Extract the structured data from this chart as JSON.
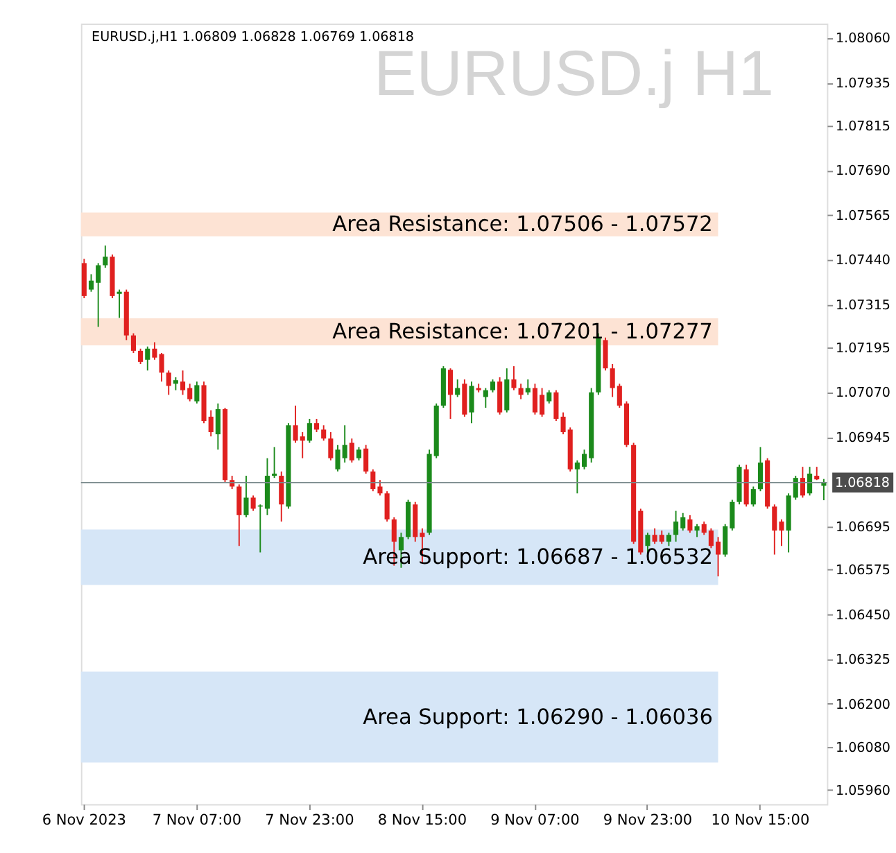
{
  "chart_data": {
    "type": "candlestick",
    "title": "EURUSD.j H1",
    "annotations": [
      "EURUSD.j,H1  1.06809 1.06828 1.06769 1.06818"
    ],
    "categories": [
      "6 Nov 2023",
      null,
      null,
      null,
      null,
      null,
      null,
      null,
      null,
      null,
      null,
      null,
      null,
      null,
      null,
      null,
      "7 Nov 07:00",
      null,
      null,
      null,
      null,
      null,
      null,
      null,
      null,
      null,
      null,
      null,
      null,
      null,
      null,
      null,
      "7 Nov 23:00",
      null,
      null,
      null,
      null,
      null,
      null,
      null,
      null,
      null,
      null,
      null,
      null,
      null,
      null,
      null,
      "8 Nov 15:00",
      null,
      null,
      null,
      null,
      null,
      null,
      null,
      null,
      null,
      null,
      null,
      null,
      null,
      null,
      null,
      "9 Nov 07:00",
      null,
      null,
      null,
      null,
      null,
      null,
      null,
      null,
      null,
      null,
      null,
      null,
      null,
      null,
      null,
      "9 Nov 23:00",
      null,
      null,
      null,
      null,
      null,
      null,
      null,
      null,
      null,
      null,
      null,
      null,
      null,
      null,
      null,
      "10 Nov 15:00",
      null,
      null,
      null,
      null,
      null,
      null,
      null,
      null,
      null
    ],
    "ohlc": [
      [
        1.07431,
        1.07443,
        1.07333,
        1.07339
      ],
      [
        1.07357,
        1.074,
        1.07351,
        1.07382
      ],
      [
        1.07376,
        1.07431,
        1.07253,
        1.07425
      ],
      [
        1.07425,
        1.0748,
        1.07418,
        1.07449
      ],
      [
        1.07449,
        1.07455,
        1.07333,
        1.07339
      ],
      [
        1.07345,
        1.07357,
        1.07278,
        1.07351
      ],
      [
        1.07351,
        1.07357,
        1.07216,
        1.07229
      ],
      [
        1.07229,
        1.07235,
        1.0718,
        1.07186
      ],
      [
        1.07186,
        1.07192,
        1.07149,
        1.07155
      ],
      [
        1.07161,
        1.07198,
        1.07131,
        1.07192
      ],
      [
        1.07192,
        1.0721,
        1.07161,
        1.07167
      ],
      [
        1.07177,
        1.0718,
        1.071,
        1.07125
      ],
      [
        1.07125,
        1.07131,
        1.07063,
        1.07088
      ],
      [
        1.07094,
        1.07112,
        1.07076,
        1.07104
      ],
      [
        1.071,
        1.07131,
        1.07063,
        1.07076
      ],
      [
        1.07082,
        1.07094,
        1.07045,
        1.07051
      ],
      [
        1.07045,
        1.071,
        1.07039,
        1.0709
      ],
      [
        1.0709,
        1.071,
        1.06984,
        1.0699
      ],
      [
        1.07002,
        1.0702,
        1.06947,
        1.06959
      ],
      [
        1.06953,
        1.07039,
        1.0691,
        1.07023
      ],
      [
        1.07023,
        1.07027,
        1.06819,
        1.06825
      ],
      [
        1.06825,
        1.06837,
        1.068,
        1.06807
      ],
      [
        1.06807,
        1.06813,
        1.06641,
        1.06727
      ],
      [
        1.06727,
        1.06837,
        1.06721,
        1.06776
      ],
      [
        1.06776,
        1.06782,
        1.06739,
        1.06745
      ],
      [
        1.06751,
        1.06757,
        1.06623,
        1.06754
      ],
      [
        1.06745,
        1.06886,
        1.06727,
        1.06837
      ],
      [
        1.06837,
        1.06917,
        1.06831,
        1.06843
      ],
      [
        1.06837,
        1.06849,
        1.06709,
        1.06757
      ],
      [
        1.06751,
        1.06984,
        1.06745,
        1.06978
      ],
      [
        1.06978,
        1.07033,
        1.06929,
        1.06935
      ],
      [
        1.06947,
        1.06959,
        1.06886,
        1.06935
      ],
      [
        1.06935,
        1.06996,
        1.06929,
        1.06984
      ],
      [
        1.06984,
        1.06996,
        1.06959,
        1.06966
      ],
      [
        1.06966,
        1.06978,
        1.06935,
        1.06941
      ],
      [
        1.06941,
        1.06959,
        1.0688,
        1.06886
      ],
      [
        1.06855,
        1.06923,
        1.06849,
        1.0691
      ],
      [
        1.06886,
        1.06978,
        1.06874,
        1.06923
      ],
      [
        1.06929,
        1.06941,
        1.06874,
        1.0688
      ],
      [
        1.06886,
        1.06917,
        1.0688,
        1.0691
      ],
      [
        1.06913,
        1.06923,
        1.06843,
        1.06849
      ],
      [
        1.06849,
        1.06855,
        1.06794,
        1.068
      ],
      [
        1.06807,
        1.06825,
        1.06782,
        1.06788
      ],
      [
        1.06788,
        1.06794,
        1.06709,
        1.06715
      ],
      [
        1.06715,
        1.06721,
        1.06586,
        1.06653
      ],
      [
        1.06629,
        1.06678,
        1.0658,
        1.06666
      ],
      [
        1.06666,
        1.0677,
        1.0666,
        1.06764
      ],
      [
        1.06757,
        1.06764,
        1.06653,
        1.06666
      ],
      [
        1.06678,
        1.0669,
        1.06592,
        1.06666
      ],
      [
        1.06678,
        1.0691,
        1.06672,
        1.06898
      ],
      [
        1.06892,
        1.07039,
        1.06886,
        1.07033
      ],
      [
        1.07033,
        1.07143,
        1.07027,
        1.07137
      ],
      [
        1.07133,
        1.07137,
        1.06996,
        1.07063
      ],
      [
        1.07063,
        1.07106,
        1.07057,
        1.07082
      ],
      [
        1.07094,
        1.07106,
        1.07002,
        1.07008
      ],
      [
        1.07014,
        1.071,
        1.06984,
        1.07088
      ],
      [
        1.07082,
        1.07094,
        1.0707,
        1.07076
      ],
      [
        1.07057,
        1.07082,
        1.07027,
        1.07076
      ],
      [
        1.07076,
        1.07106,
        1.0707,
        1.071
      ],
      [
        1.071,
        1.07112,
        1.07008,
        1.07014
      ],
      [
        1.0702,
        1.07137,
        1.07014,
        1.07106
      ],
      [
        1.07106,
        1.07143,
        1.07076,
        1.07082
      ],
      [
        1.07082,
        1.07094,
        1.07051,
        1.07063
      ],
      [
        1.0707,
        1.07106,
        1.07063,
        1.07082
      ],
      [
        1.07082,
        1.07094,
        1.07008,
        1.07014
      ],
      [
        1.07063,
        1.07082,
        1.07002,
        1.07008
      ],
      [
        1.07045,
        1.07076,
        1.07039,
        1.0707
      ],
      [
        1.0707,
        1.07076,
        1.0699,
        1.06996
      ],
      [
        1.07002,
        1.07014,
        1.06953,
        1.06959
      ],
      [
        1.06966,
        1.06972,
        1.06849,
        1.06855
      ],
      [
        1.06855,
        1.0688,
        1.06788,
        1.06874
      ],
      [
        1.06862,
        1.0691,
        1.06855,
        1.06898
      ],
      [
        1.06886,
        1.07082,
        1.06874,
        1.0707
      ],
      [
        1.0707,
        1.07235,
        1.07063,
        1.07223
      ],
      [
        1.07216,
        1.07223,
        1.07131,
        1.07137
      ],
      [
        1.07137,
        1.07149,
        1.07057,
        1.07082
      ],
      [
        1.07088,
        1.07094,
        1.07027,
        1.07033
      ],
      [
        1.07039,
        1.07045,
        1.06917,
        1.06923
      ],
      [
        1.06923,
        1.06929,
        1.06647,
        1.06653
      ],
      [
        1.06739,
        1.06745,
        1.06617,
        1.06623
      ],
      [
        1.06641,
        1.06678,
        1.06623,
        1.06672
      ],
      [
        1.06672,
        1.0669,
        1.06647,
        1.06653
      ],
      [
        1.06672,
        1.06684,
        1.06647,
        1.06653
      ],
      [
        1.06653,
        1.06678,
        1.06641,
        1.06672
      ],
      [
        1.06672,
        1.06739,
        1.06653,
        1.06709
      ],
      [
        1.0669,
        1.06733,
        1.06684,
        1.06721
      ],
      [
        1.06715,
        1.06727,
        1.06678,
        1.06684
      ],
      [
        1.06684,
        1.06702,
        1.06666,
        1.06696
      ],
      [
        1.06702,
        1.06709,
        1.06672,
        1.06678
      ],
      [
        1.06684,
        1.0669,
        1.06635,
        1.06641
      ],
      [
        1.06653,
        1.06666,
        1.06556,
        1.06617
      ],
      [
        1.06617,
        1.06702,
        1.06611,
        1.06696
      ],
      [
        1.0669,
        1.0677,
        1.06684,
        1.06764
      ],
      [
        1.06764,
        1.06868,
        1.06757,
        1.06862
      ],
      [
        1.06855,
        1.06868,
        1.06751,
        1.06757
      ],
      [
        1.06757,
        1.06807,
        1.06751,
        1.068
      ],
      [
        1.068,
        1.06917,
        1.06794,
        1.06874
      ],
      [
        1.0688,
        1.06886,
        1.06745,
        1.06751
      ],
      [
        1.06751,
        1.06757,
        1.06617,
        1.06684
      ],
      [
        1.06709,
        1.06715,
        1.06641,
        1.06684
      ],
      [
        1.06684,
        1.06788,
        1.06623,
        1.06782
      ],
      [
        1.06776,
        1.06837,
        1.0677,
        1.06831
      ],
      [
        1.06831,
        1.06862,
        1.06776,
        1.06782
      ],
      [
        1.06788,
        1.06862,
        1.06782,
        1.06843
      ],
      [
        1.06837,
        1.06862,
        1.06825,
        1.06827
      ],
      [
        1.06809,
        1.06828,
        1.06769,
        1.06818
      ]
    ],
    "colors": [
      "#e0201f",
      "#1b8a1b",
      "#1b8a1b",
      "#1b8a1b",
      "#e0201f",
      "#1b8a1b",
      "#e0201f",
      "#e0201f",
      "#e0201f",
      "#1b8a1b",
      "#e0201f",
      "#e0201f",
      "#e0201f",
      "#1b8a1b",
      "#e0201f",
      "#e0201f",
      "#1b8a1b",
      "#e0201f",
      "#e0201f",
      "#1b8a1b",
      "#e0201f",
      "#e0201f",
      "#e0201f",
      "#1b8a1b",
      "#e0201f",
      "#1b8a1b",
      "#1b8a1b",
      "#1b8a1b",
      "#e0201f",
      "#1b8a1b",
      "#e0201f",
      "#e0201f",
      "#1b8a1b",
      "#e0201f",
      "#e0201f",
      "#e0201f",
      "#1b8a1b",
      "#1b8a1b",
      "#e0201f",
      "#1b8a1b",
      "#e0201f",
      "#e0201f",
      "#e0201f",
      "#e0201f",
      "#e0201f",
      "#1b8a1b",
      "#1b8a1b",
      "#e0201f",
      "#e0201f",
      "#1b8a1b",
      "#1b8a1b",
      "#1b8a1b",
      "#e0201f",
      "#1b8a1b",
      "#e0201f",
      "#1b8a1b",
      "#e0201f",
      "#1b8a1b",
      "#1b8a1b",
      "#e0201f",
      "#1b8a1b",
      "#e0201f",
      "#e0201f",
      "#1b8a1b",
      "#e0201f",
      "#e0201f",
      "#1b8a1b",
      "#e0201f",
      "#e0201f",
      "#e0201f",
      "#1b8a1b",
      "#1b8a1b",
      "#1b8a1b",
      "#1b8a1b",
      "#e0201f",
      "#e0201f",
      "#e0201f",
      "#e0201f",
      "#e0201f",
      "#e0201f",
      "#1b8a1b",
      "#e0201f",
      "#e0201f",
      "#1b8a1b",
      "#1b8a1b",
      "#1b8a1b",
      "#e0201f",
      "#1b8a1b",
      "#e0201f",
      "#e0201f",
      "#e0201f",
      "#1b8a1b",
      "#1b8a1b",
      "#1b8a1b",
      "#e0201f",
      "#1b8a1b",
      "#1b8a1b",
      "#e0201f",
      "#e0201f",
      "#e0201f",
      "#1b8a1b",
      "#1b8a1b",
      "#e0201f",
      "#1b8a1b",
      "#e0201f",
      "#1b8a1b"
    ],
    "ylim": [
      1.0592,
      1.081
    ],
    "yticks": [
      {
        "value": 1.0806,
        "label": "1.08060"
      },
      {
        "value": 1.07935,
        "label": "1.07935"
      },
      {
        "value": 1.07815,
        "label": "1.07815"
      },
      {
        "value": 1.0769,
        "label": "1.07690"
      },
      {
        "value": 1.07565,
        "label": "1.07565"
      },
      {
        "value": 1.0744,
        "label": "1.07440"
      },
      {
        "value": 1.07315,
        "label": "1.07315"
      },
      {
        "value": 1.07195,
        "label": "1.07195"
      },
      {
        "value": 1.0707,
        "label": "1.07070"
      },
      {
        "value": 1.06945,
        "label": "1.06945"
      },
      {
        "value": 1.06695,
        "label": "1.06695"
      },
      {
        "value": 1.06575,
        "label": "1.06575"
      },
      {
        "value": 1.0645,
        "label": "1.06450"
      },
      {
        "value": 1.06325,
        "label": "1.06325"
      },
      {
        "value": 1.062,
        "label": "1.06200"
      },
      {
        "value": 1.0608,
        "label": "1.06080"
      },
      {
        "value": 1.0596,
        "label": "1.05960"
      }
    ],
    "grid": false,
    "ref_lines": [
      {
        "axis": "y",
        "value": 1.06818,
        "label": "1.06818",
        "color": "#7a8a8c"
      }
    ],
    "bands": [
      {
        "axis": "y",
        "from": 1.07506,
        "to": 1.07572,
        "label": "Area Resistance: 1.07506 - 1.07572",
        "color": "#fde3d4"
      },
      {
        "axis": "y",
        "from": 1.07201,
        "to": 1.07277,
        "label": "Area Resistance: 1.07201 - 1.07277",
        "color": "#fde3d4"
      },
      {
        "axis": "y",
        "from": 1.06532,
        "to": 1.06687,
        "label": "Area Support: 1.06687 - 1.06532",
        "color": "#d6e6f7"
      },
      {
        "axis": "y",
        "from": 1.06036,
        "to": 1.0629,
        "label": "Area Support: 1.06290 - 1.06036",
        "color": "#d6e6f7"
      }
    ]
  }
}
